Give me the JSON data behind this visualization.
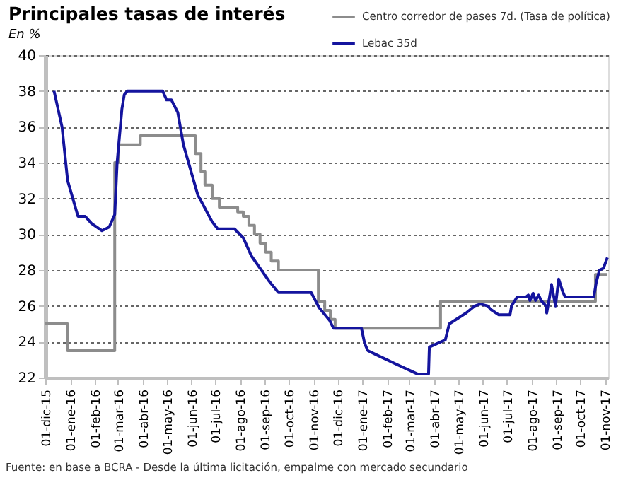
{
  "chart_data": {
    "type": "line",
    "title": "Principales tasas de interés",
    "subtitle": "En %",
    "annotations": [
      "Fuente: en base a BCRA - Desde la última licitación, empalme con mercado secundario"
    ],
    "xlim": [
      "2015-12-01",
      "2017-11-05"
    ],
    "xticks": [
      {
        "value": "2015-12-01",
        "label": "01-dic-15"
      },
      {
        "value": "2016-01-01",
        "label": "01-ene-16"
      },
      {
        "value": "2016-02-01",
        "label": "01-feb-16"
      },
      {
        "value": "2016-03-01",
        "label": "01-mar-16"
      },
      {
        "value": "2016-04-01",
        "label": "01-abr-16"
      },
      {
        "value": "2016-05-01",
        "label": "01-may-16"
      },
      {
        "value": "2016-06-01",
        "label": "01-jun-16"
      },
      {
        "value": "2016-07-01",
        "label": "01-jul-16"
      },
      {
        "value": "2016-08-01",
        "label": "01-ago-16"
      },
      {
        "value": "2016-09-01",
        "label": "01-sep-16"
      },
      {
        "value": "2016-10-01",
        "label": "01-oct-16"
      },
      {
        "value": "2016-11-01",
        "label": "01-nov-16"
      },
      {
        "value": "2016-12-01",
        "label": "01-dic-16"
      },
      {
        "value": "2017-01-01",
        "label": "01-ene-17"
      },
      {
        "value": "2017-02-01",
        "label": "01-feb-17"
      },
      {
        "value": "2017-03-01",
        "label": "01-mar-17"
      },
      {
        "value": "2017-04-01",
        "label": "01-abr-17"
      },
      {
        "value": "2017-05-01",
        "label": "01-may-17"
      },
      {
        "value": "2017-06-01",
        "label": "01-jun-17"
      },
      {
        "value": "2017-07-01",
        "label": "01-jul-17"
      },
      {
        "value": "2017-08-01",
        "label": "01-ago-17"
      },
      {
        "value": "2017-09-01",
        "label": "01-sep-17"
      },
      {
        "value": "2017-10-01",
        "label": "01-oct-17"
      },
      {
        "value": "2017-11-01",
        "label": "01-nov-17"
      }
    ],
    "ylim": [
      22,
      40
    ],
    "yticks": [
      22,
      24,
      26,
      28,
      30,
      32,
      34,
      36,
      38,
      40
    ],
    "grid": "y",
    "legend": "top right",
    "line_style": "solid",
    "marker": "none",
    "series": [
      {
        "name": "Centro corredor de pases 7d. (Tasa de política)",
        "type": "step",
        "color": "#8c8c8c",
        "x": [
          "2015-12-01",
          "2015-12-29",
          "2016-02-26",
          "2016-03-02",
          "2016-03-29",
          "2016-06-06",
          "2016-06-13",
          "2016-06-18",
          "2016-06-27",
          "2016-07-06",
          "2016-07-29",
          "2016-08-05",
          "2016-08-12",
          "2016-08-19",
          "2016-08-26",
          "2016-09-02",
          "2016-09-09",
          "2016-09-18",
          "2016-11-07",
          "2016-11-15",
          "2016-11-22",
          "2016-11-28",
          "2017-04-09",
          "2017-10-20",
          "2017-11-04"
        ],
        "values": [
          25,
          23.5,
          34,
          35,
          35.5,
          34.5,
          33.5,
          32.75,
          32,
          31.5,
          31.25,
          31,
          30.5,
          30,
          29.5,
          29,
          28.5,
          28,
          26.25,
          25.75,
          25.25,
          24.75,
          26.25,
          27.75,
          27.75
        ]
      },
      {
        "name": "Lebac 35d",
        "type": "line",
        "color": "#14149e",
        "x": [
          "2015-12-12",
          "2015-12-22",
          "2015-12-29",
          "2016-01-11",
          "2016-01-20",
          "2016-01-28",
          "2016-02-10",
          "2016-02-19",
          "2016-02-26",
          "2016-02-29",
          "2016-03-06",
          "2016-03-09",
          "2016-03-13",
          "2016-04-26",
          "2016-05-01",
          "2016-05-07",
          "2016-05-15",
          "2016-05-22",
          "2016-06-09",
          "2016-06-27",
          "2016-07-04",
          "2016-07-25",
          "2016-08-05",
          "2016-08-15",
          "2016-09-06",
          "2016-09-18",
          "2016-10-29",
          "2016-11-08",
          "2016-11-21",
          "2016-11-26",
          "2016-12-31",
          "2017-01-04",
          "2017-01-08",
          "2017-01-22",
          "2017-02-10",
          "2017-03-11",
          "2017-03-25",
          "2017-03-26",
          "2017-04-15",
          "2017-04-20",
          "2017-05-11",
          "2017-05-22",
          "2017-05-29",
          "2017-06-07",
          "2017-06-11",
          "2017-06-21",
          "2017-07-05",
          "2017-07-07",
          "2017-07-14",
          "2017-07-25",
          "2017-07-28",
          "2017-07-30",
          "2017-08-03",
          "2017-08-06",
          "2017-08-10",
          "2017-08-13",
          "2017-08-19",
          "2017-08-20",
          "2017-08-24",
          "2017-08-26",
          "2017-08-31",
          "2017-09-04",
          "2017-09-09",
          "2017-09-12",
          "2017-10-18",
          "2017-10-21",
          "2017-10-25",
          "2017-10-30",
          "2017-11-04"
        ],
        "values": [
          38,
          36,
          33,
          31,
          31,
          30.6,
          30.2,
          30.4,
          31.1,
          34,
          37,
          37.8,
          38,
          38,
          37.5,
          37.5,
          36.8,
          35,
          32.2,
          30.7,
          30.3,
          30.3,
          29.8,
          28.8,
          27.4,
          26.75,
          26.75,
          25.9,
          25.2,
          24.75,
          24.75,
          23.9,
          23.5,
          23.2,
          22.8,
          22.2,
          22.2,
          23.7,
          24.1,
          25,
          25.6,
          26,
          26.1,
          26,
          25.8,
          25.5,
          25.5,
          26,
          26.5,
          26.5,
          26.6,
          26.3,
          26.7,
          26.3,
          26.6,
          26.3,
          26,
          25.6,
          26.6,
          27.2,
          26,
          27.5,
          26.8,
          26.5,
          26.5,
          27.3,
          28,
          28.1,
          28.7
        ]
      }
    ]
  }
}
